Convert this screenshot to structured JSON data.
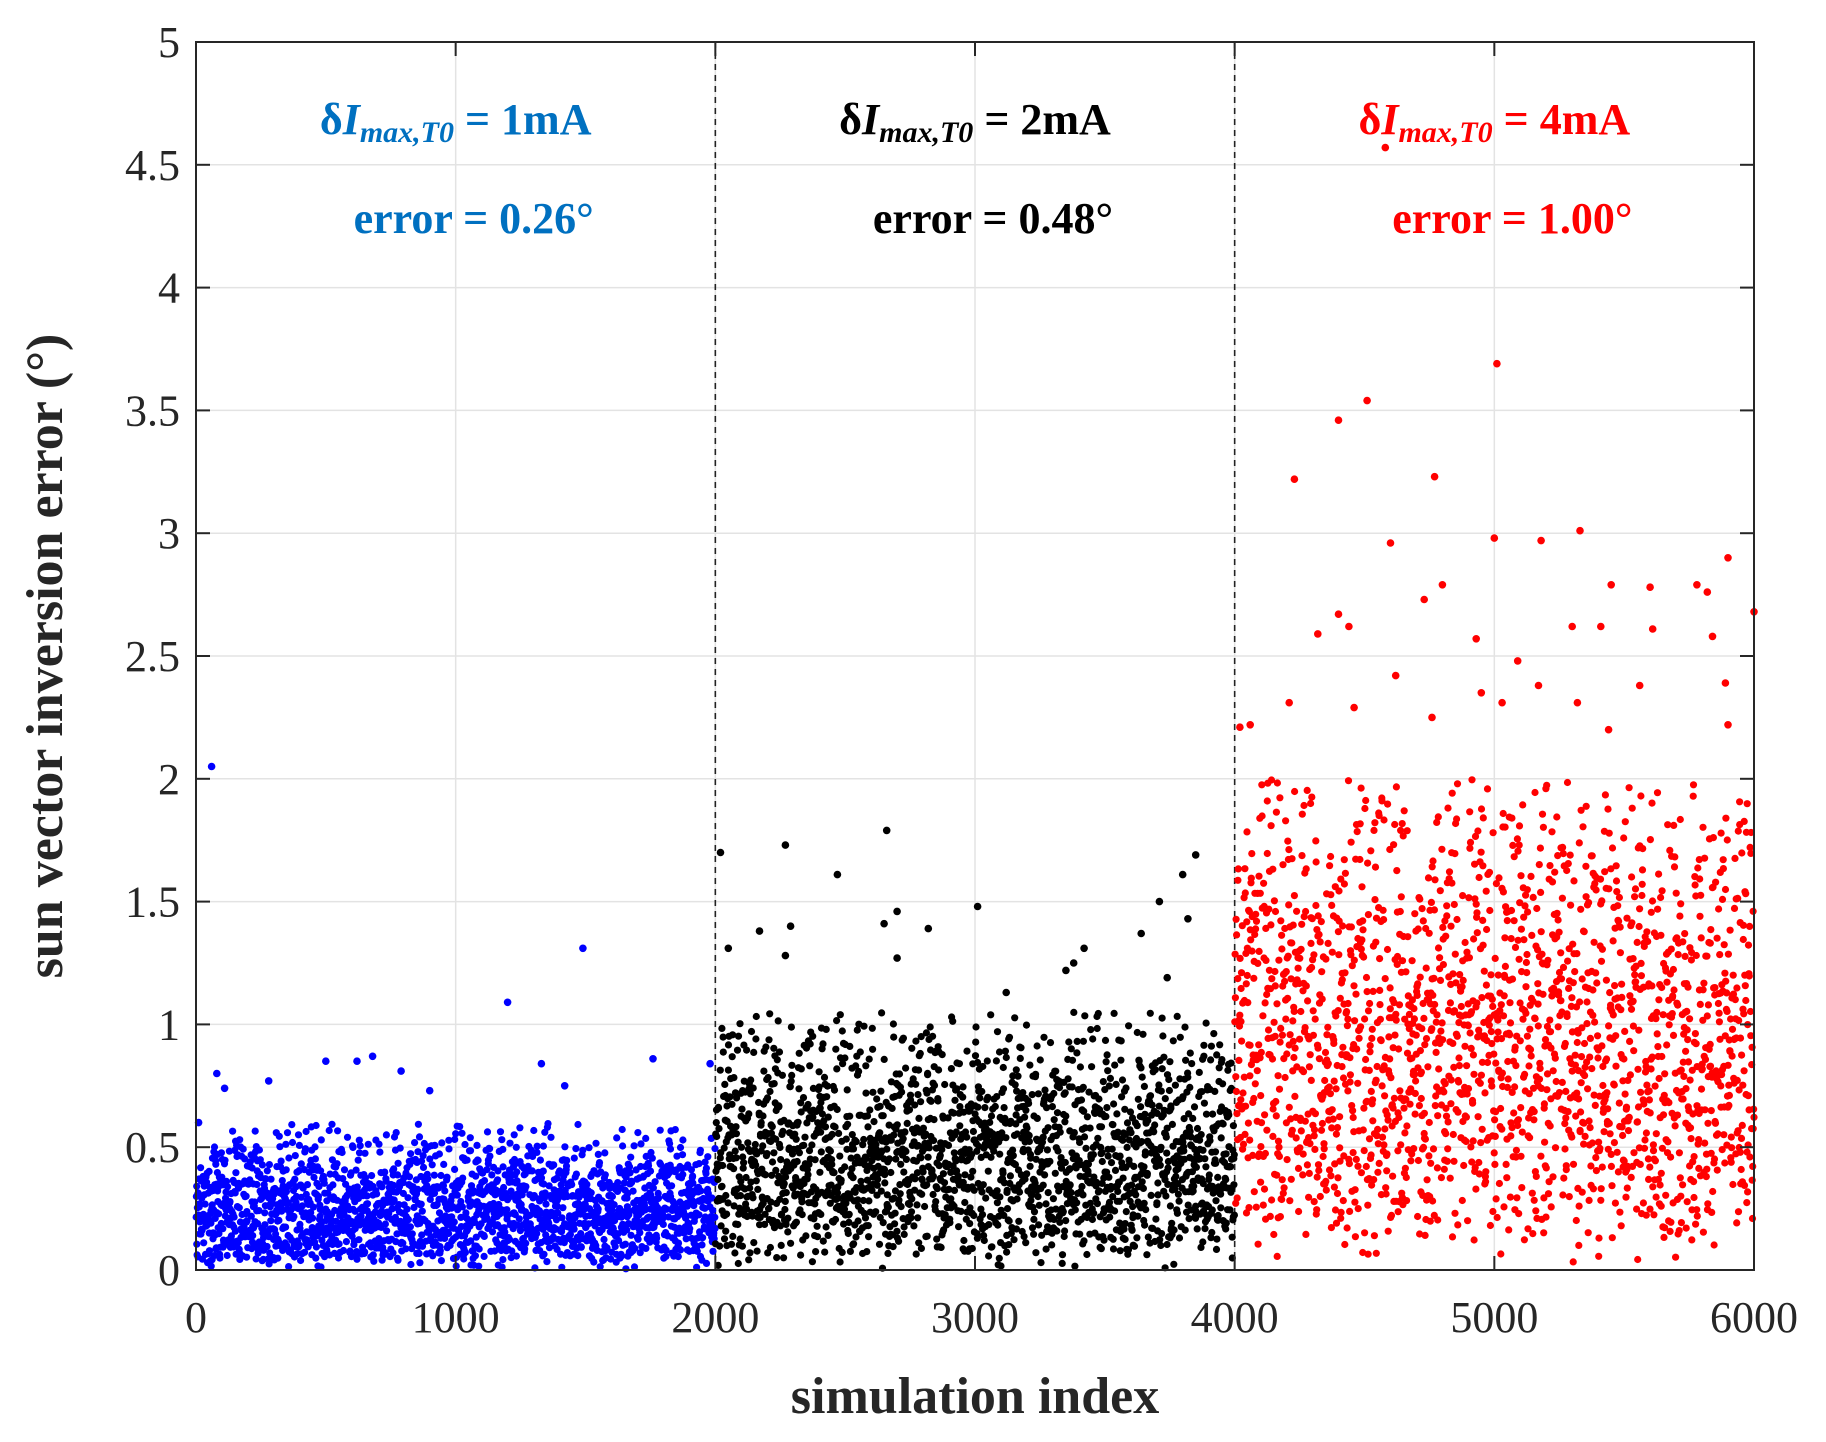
{
  "chart_data": {
    "type": "scatter",
    "title": "",
    "xlabel": "simulation index",
    "ylabel": "sun vector inversion error (°)",
    "xlim": [
      0,
      6000
    ],
    "ylim": [
      0,
      5
    ],
    "xticks": [
      0,
      1000,
      2000,
      3000,
      4000,
      5000,
      6000
    ],
    "xtick_labels": [
      "0",
      "1000",
      "2000",
      "3000",
      "4000",
      "5000",
      "6000"
    ],
    "yticks": [
      0,
      0.5,
      1,
      1.5,
      2,
      2.5,
      3,
      3.5,
      4,
      4.5,
      5
    ],
    "ytick_labels": [
      "0",
      "0.5",
      "1",
      "1.5",
      "2",
      "2.5",
      "3",
      "3.5",
      "4",
      "4.5",
      "5"
    ],
    "grid": true,
    "separators_x": [
      2000,
      4000
    ],
    "series": [
      {
        "name": "δImax,T0 = 1mA",
        "color": "#0000ff",
        "x_range": [
          0,
          2000
        ],
        "n_points": 2000,
        "mean_error": 0.26,
        "typical_range": [
          0,
          0.6
        ],
        "outliers": [
          {
            "x": 60,
            "y": 2.05
          },
          {
            "x": 1490,
            "y": 1.31
          },
          {
            "x": 1200,
            "y": 1.09
          },
          {
            "x": 680,
            "y": 0.87
          },
          {
            "x": 620,
            "y": 0.85
          },
          {
            "x": 500,
            "y": 0.85
          },
          {
            "x": 1760,
            "y": 0.86
          },
          {
            "x": 1330,
            "y": 0.84
          },
          {
            "x": 80,
            "y": 0.8
          },
          {
            "x": 790,
            "y": 0.81
          },
          {
            "x": 1980,
            "y": 0.84
          },
          {
            "x": 280,
            "y": 0.77
          },
          {
            "x": 1420,
            "y": 0.75
          },
          {
            "x": 110,
            "y": 0.74
          },
          {
            "x": 900,
            "y": 0.73
          },
          {
            "x": 10,
            "y": 0.6
          }
        ]
      },
      {
        "name": "δImax,T0 = 2mA",
        "color": "#000000",
        "x_range": [
          2000,
          4000
        ],
        "n_points": 2000,
        "mean_error": 0.48,
        "typical_range": [
          0,
          1.05
        ],
        "outliers": [
          {
            "x": 2660,
            "y": 1.79
          },
          {
            "x": 2270,
            "y": 1.73
          },
          {
            "x": 2020,
            "y": 1.7
          },
          {
            "x": 3850,
            "y": 1.69
          },
          {
            "x": 2470,
            "y": 1.61
          },
          {
            "x": 3800,
            "y": 1.61
          },
          {
            "x": 3710,
            "y": 1.5
          },
          {
            "x": 3010,
            "y": 1.48
          },
          {
            "x": 2700,
            "y": 1.46
          },
          {
            "x": 3820,
            "y": 1.43
          },
          {
            "x": 2820,
            "y": 1.39
          },
          {
            "x": 2290,
            "y": 1.4
          },
          {
            "x": 2650,
            "y": 1.41
          },
          {
            "x": 2170,
            "y": 1.38
          },
          {
            "x": 3640,
            "y": 1.37
          },
          {
            "x": 2050,
            "y": 1.31
          },
          {
            "x": 3420,
            "y": 1.31
          },
          {
            "x": 3380,
            "y": 1.25
          },
          {
            "x": 2270,
            "y": 1.28
          },
          {
            "x": 2700,
            "y": 1.27
          },
          {
            "x": 3350,
            "y": 1.22
          },
          {
            "x": 3740,
            "y": 1.19
          },
          {
            "x": 3120,
            "y": 1.13
          }
        ]
      },
      {
        "name": "δImax,T0 = 4mA",
        "color": "#ff0000",
        "x_range": [
          4000,
          6000
        ],
        "n_points": 2000,
        "mean_error": 1.0,
        "typical_range": [
          0,
          2.0
        ],
        "outliers": [
          {
            "x": 4580,
            "y": 4.57
          },
          {
            "x": 5010,
            "y": 3.69
          },
          {
            "x": 4510,
            "y": 3.54
          },
          {
            "x": 4400,
            "y": 3.46
          },
          {
            "x": 4230,
            "y": 3.22
          },
          {
            "x": 4770,
            "y": 3.23
          },
          {
            "x": 5330,
            "y": 3.01
          },
          {
            "x": 5000,
            "y": 2.98
          },
          {
            "x": 5180,
            "y": 2.97
          },
          {
            "x": 4600,
            "y": 2.96
          },
          {
            "x": 5900,
            "y": 2.9
          },
          {
            "x": 6000,
            "y": 2.68
          },
          {
            "x": 5450,
            "y": 2.79
          },
          {
            "x": 4800,
            "y": 2.79
          },
          {
            "x": 5600,
            "y": 2.78
          },
          {
            "x": 5780,
            "y": 2.79
          },
          {
            "x": 5820,
            "y": 2.76
          },
          {
            "x": 4400,
            "y": 2.67
          },
          {
            "x": 4440,
            "y": 2.62
          },
          {
            "x": 4320,
            "y": 2.59
          },
          {
            "x": 4930,
            "y": 2.57
          },
          {
            "x": 5300,
            "y": 2.62
          },
          {
            "x": 5410,
            "y": 2.62
          },
          {
            "x": 5610,
            "y": 2.61
          },
          {
            "x": 5840,
            "y": 2.58
          },
          {
            "x": 4730,
            "y": 2.73
          },
          {
            "x": 4620,
            "y": 2.42
          },
          {
            "x": 5090,
            "y": 2.48
          },
          {
            "x": 5890,
            "y": 2.39
          },
          {
            "x": 5560,
            "y": 2.38
          },
          {
            "x": 5170,
            "y": 2.38
          },
          {
            "x": 4950,
            "y": 2.35
          },
          {
            "x": 4460,
            "y": 2.29
          },
          {
            "x": 4210,
            "y": 2.31
          },
          {
            "x": 5320,
            "y": 2.31
          },
          {
            "x": 5030,
            "y": 2.31
          },
          {
            "x": 4020,
            "y": 2.21
          },
          {
            "x": 4060,
            "y": 2.22
          },
          {
            "x": 4760,
            "y": 2.25
          },
          {
            "x": 5900,
            "y": 2.22
          },
          {
            "x": 5440,
            "y": 2.2
          }
        ]
      }
    ],
    "annotations": [
      {
        "label": "δI",
        "sub": "max,T0",
        "value": " = 1mA",
        "error": "error = 0.26°",
        "color": "#0070c0",
        "x_center": 1000
      },
      {
        "label": "δI",
        "sub": "max,T0",
        "value": " = 2mA",
        "error": "error = 0.48°",
        "color": "#000000",
        "x_center": 3000
      },
      {
        "label": "δI",
        "sub": "max,T0",
        "value": " = 4mA",
        "error": "error = 1.00°",
        "color": "#ff0000",
        "x_center": 5000
      }
    ]
  }
}
